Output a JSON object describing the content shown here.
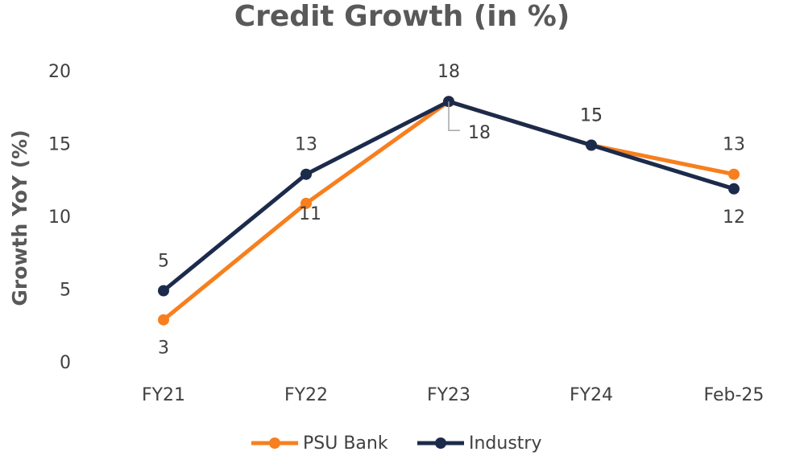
{
  "chart_data": {
    "type": "line",
    "title": "Credit Growth (in %)",
    "y_label": "Growth YoY (%)",
    "categories": [
      "FY21",
      "FY22",
      "FY23",
      "FY24",
      "Feb-25"
    ],
    "series": [
      {
        "name": "PSU Bank",
        "color": "#f77f1e",
        "values": [
          3,
          11,
          18,
          15,
          13
        ]
      },
      {
        "name": "Industry",
        "color": "#1c2b4b",
        "values": [
          5,
          13,
          18,
          15,
          12
        ]
      }
    ],
    "ylim": [
      0,
      20
    ],
    "yticks": [
      0,
      5,
      10,
      15,
      20
    ],
    "grid": false,
    "legend": "bottom"
  }
}
